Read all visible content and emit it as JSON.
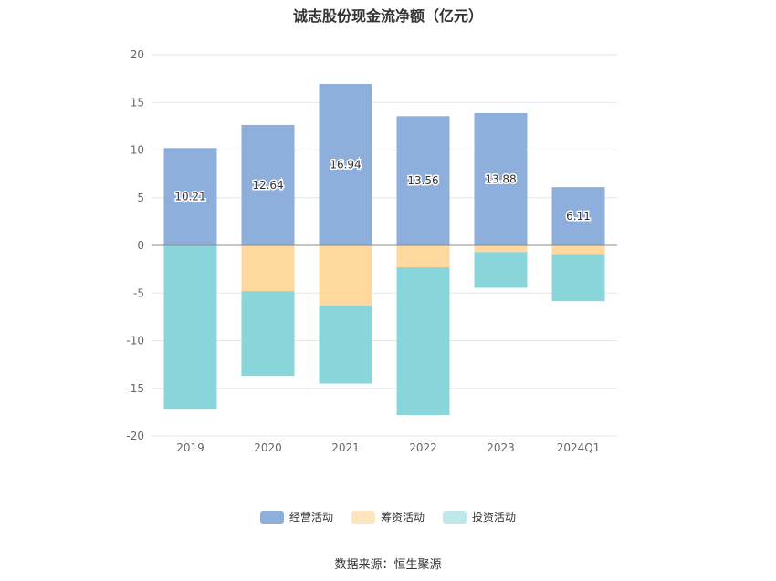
{
  "chart_data": {
    "type": "bar",
    "title": "诚志股份现金流净额（亿元）",
    "categories": [
      "2019",
      "2020",
      "2021",
      "2022",
      "2023",
      "2024Q1"
    ],
    "ylim": [
      -20,
      20
    ],
    "yticks": [
      20,
      15,
      10,
      5,
      0,
      -5,
      -10,
      -15,
      -20
    ],
    "stacked": true,
    "grid": true,
    "legend_position": "bottom",
    "series": [
      {
        "name": "经营活动",
        "color": "#8eaedb",
        "values": [
          10.21,
          12.64,
          16.94,
          13.56,
          13.88,
          6.11
        ],
        "labels": [
          "10.21",
          "12.64",
          "16.94",
          "13.56",
          "13.88",
          "6.11"
        ]
      },
      {
        "name": "筹资活动",
        "color": "#fed89d",
        "values": [
          -0.05,
          -4.8,
          -6.3,
          -2.3,
          -0.7,
          -1.0
        ]
      },
      {
        "name": "投资活动",
        "color": "#88d6da",
        "values": [
          -17.1,
          -8.9,
          -8.2,
          -15.5,
          -3.75,
          -4.85
        ]
      }
    ]
  },
  "legend": [
    {
      "label": "经营活动",
      "color": "#8eaedb"
    },
    {
      "label": "筹资活动",
      "color": "#fee5c0"
    },
    {
      "label": "投资活动",
      "color": "#bfe8ea"
    }
  ],
  "source": "数据来源：恒生聚源"
}
